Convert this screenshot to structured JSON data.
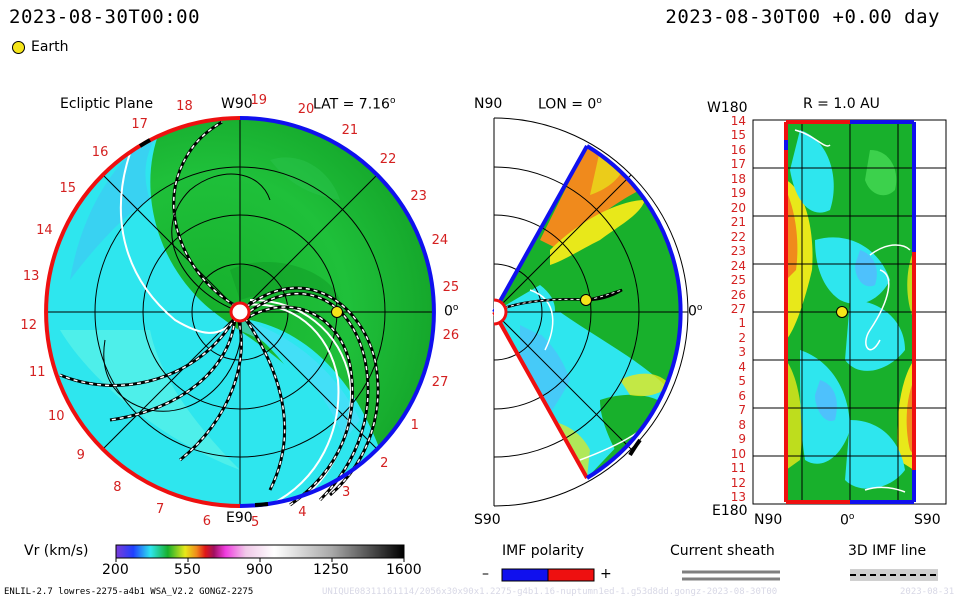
{
  "header": {
    "left_time": "2023-08-30T00:00",
    "right_time": "2023-08-30T00 +0.00 day",
    "legend_label": "Earth"
  },
  "ecliptic": {
    "title": "Ecliptic Plane",
    "top_label": "W90",
    "bottom_label": "E90",
    "right_label": "0",
    "lat_label": "LAT = 7.16",
    "carrington_labels": [
      "19",
      "20",
      "21",
      "22",
      "23",
      "24",
      "25",
      "26",
      "27",
      "1",
      "2",
      "3",
      "4",
      "5",
      "6",
      "7",
      "8",
      "9",
      "10",
      "11",
      "12",
      "13",
      "14",
      "15",
      "16",
      "17",
      "18"
    ]
  },
  "meridional": {
    "top_label": "N90",
    "bottom_label": "S90",
    "right_label": "0",
    "lon_label": "LON = 0"
  },
  "sphere": {
    "top_left_label": "W180",
    "bottom_left_label": "E180",
    "r_label": "R = 1.0 AU",
    "bottom_labels": [
      "N90",
      "0",
      "S90"
    ],
    "left_ticks": [
      "14",
      "15",
      "16",
      "17",
      "18",
      "19",
      "20",
      "21",
      "22",
      "23",
      "24",
      "25",
      "26",
      "27",
      "1",
      "2",
      "3",
      "4",
      "5",
      "6",
      "7",
      "8",
      "9",
      "10",
      "11",
      "12",
      "13"
    ]
  },
  "colorbar": {
    "title": "Vr (km/s)",
    "ticks": [
      "200",
      "550",
      "900",
      "1250",
      "1600"
    ]
  },
  "imf": {
    "title": "IMF polarity",
    "minus": "–",
    "plus": "+",
    "neg_color": "#1010ee",
    "pos_color": "#ee1010"
  },
  "sheath": {
    "title": "Current sheath"
  },
  "imf_line": {
    "title": "3D IMF line"
  },
  "footer": {
    "model": "ENLIL-2.7 lowres-2275-a4b1 WSA_V2.2 GONGZ-2275",
    "run_id": "UNIQUE08311161114/2056x30x90x1.2275-g4b1.16-nuptumn1ed-1.g53d8dd.gongz-2023-08-30T00",
    "date_tail": "2023-08-31"
  },
  "colors": {
    "bg_green": "#16b02c",
    "slow_cyan": "#2ee6ee",
    "fast_yellow": "#e8e81a",
    "orange": "#f08a1c"
  }
}
